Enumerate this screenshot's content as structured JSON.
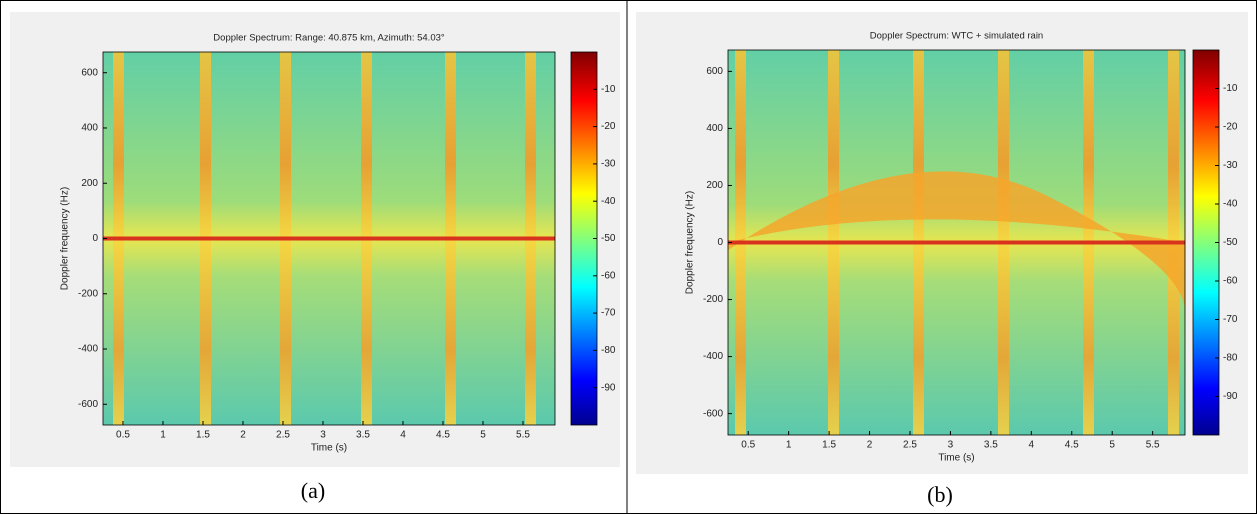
{
  "chart_data": [
    {
      "type": "spectrogram",
      "title": "Doppler Spectrum: Range: 40.875 km, Azimuth: 54.03°",
      "x_label": "Time (s)",
      "y_label": "Doppler frequency (Hz)",
      "caption": "(a)",
      "xlim": [
        0.25,
        5.9
      ],
      "xticks": [
        0.5,
        1,
        1.5,
        2,
        2.5,
        3,
        3.5,
        4,
        4.5,
        5,
        5.5
      ],
      "ylim": [
        -675,
        675
      ],
      "yticks": [
        -600,
        -400,
        -200,
        0,
        200,
        400,
        600
      ],
      "colormap": "jet",
      "clim": [
        -100,
        0
      ],
      "cticks": [
        -90,
        -80,
        -70,
        -60,
        -50,
        -40,
        -30,
        -20,
        -10
      ]
    },
    {
      "type": "spectrogram",
      "title": "Doppler Spectrum: WTC + simulated rain",
      "x_label": "Time (s)",
      "y_label": "Doppler frequency (Hz)",
      "caption": "(b)",
      "xlim": [
        0.25,
        5.9
      ],
      "xticks": [
        0.5,
        1,
        1.5,
        2,
        2.5,
        3,
        3.5,
        4,
        4.5,
        5,
        5.5
      ],
      "ylim": [
        -675,
        675
      ],
      "yticks": [
        -600,
        -400,
        -200,
        0,
        200,
        400,
        600
      ],
      "colormap": "jet",
      "clim": [
        -100,
        0
      ],
      "cticks": [
        -90,
        -80,
        -70,
        -60,
        -50,
        -40,
        -30,
        -20,
        -10
      ]
    }
  ]
}
